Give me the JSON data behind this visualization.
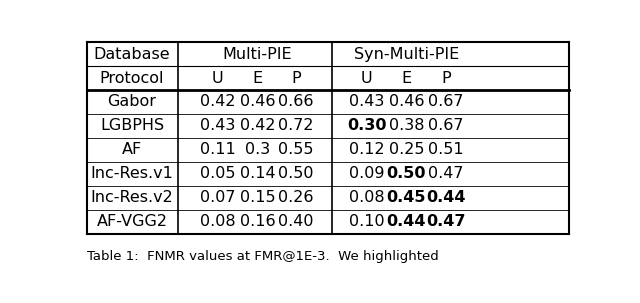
{
  "header_row1": [
    "Database",
    "Multi-PIE",
    "Syn-Multi-PIE"
  ],
  "header_row2": [
    "Protocol",
    "U",
    "E",
    "P",
    "U",
    "E",
    "P"
  ],
  "rows": [
    {
      "label": "Gabor",
      "multi": [
        "0.42",
        "0.46",
        "0.66"
      ],
      "syn": [
        "0.43",
        "0.46",
        "0.67"
      ],
      "bold_multi": [],
      "bold_syn": []
    },
    {
      "label": "LGBPHS",
      "multi": [
        "0.43",
        "0.42",
        "0.72"
      ],
      "syn": [
        "0.30",
        "0.38",
        "0.67"
      ],
      "bold_multi": [],
      "bold_syn": [
        0
      ]
    },
    {
      "label": "AF",
      "multi": [
        "0.11",
        "0.3",
        "0.55"
      ],
      "syn": [
        "0.12",
        "0.25",
        "0.51"
      ],
      "bold_multi": [],
      "bold_syn": []
    },
    {
      "label": "Inc-Res.v1",
      "multi": [
        "0.05",
        "0.14",
        "0.50"
      ],
      "syn": [
        "0.09",
        "0.50",
        "0.47"
      ],
      "bold_multi": [],
      "bold_syn": [
        1
      ]
    },
    {
      "label": "Inc-Res.v2",
      "multi": [
        "0.07",
        "0.15",
        "0.26"
      ],
      "syn": [
        "0.08",
        "0.45",
        "0.44"
      ],
      "bold_multi": [],
      "bold_syn": [
        1,
        2
      ]
    },
    {
      "label": "AF-VGG2",
      "multi": [
        "0.08",
        "0.16",
        "0.40"
      ],
      "syn": [
        "0.10",
        "0.44",
        "0.47"
      ],
      "bold_multi": [],
      "bold_syn": [
        1,
        2
      ]
    }
  ],
  "caption": "Table 1:  FNMR values at FMR@1E-3.  We highlighted",
  "bg_color": "#ffffff",
  "text_color": "#000000",
  "font_size": 11.5,
  "header_font_size": 11.5,
  "caption_font_size": 9.5
}
